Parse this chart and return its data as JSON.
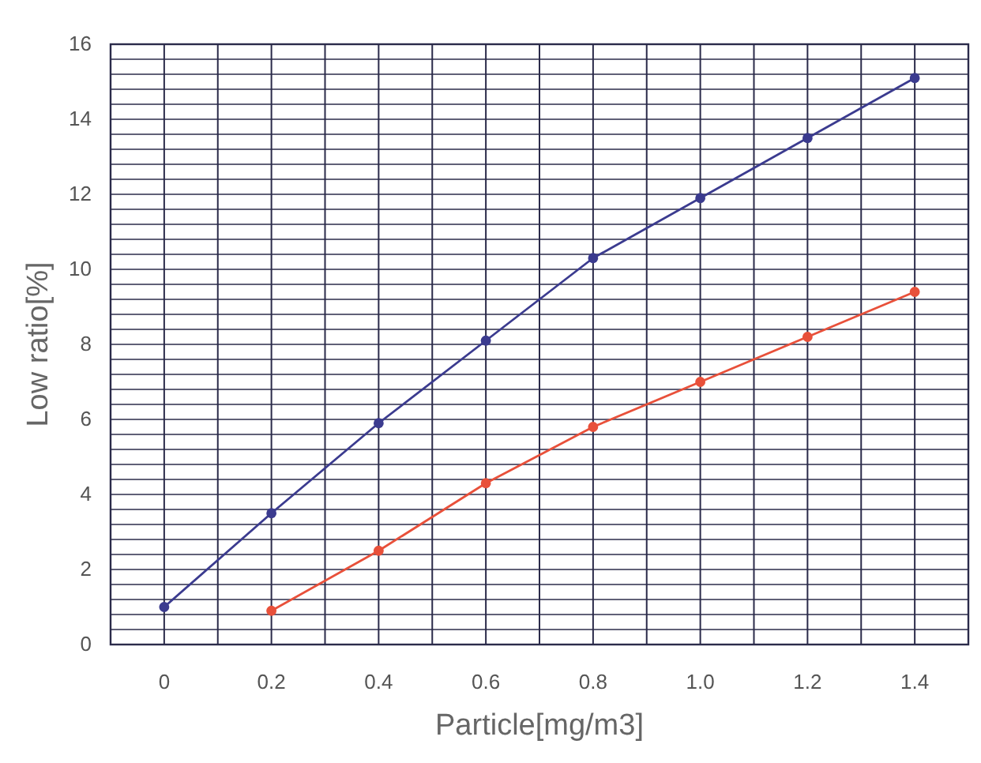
{
  "chart_data": {
    "type": "line",
    "xlabel": "Particle[mg/m3]",
    "ylabel": "Low ratio[%]",
    "x": [
      0,
      0.2,
      0.4,
      0.6,
      0.8,
      1.0,
      1.2,
      1.4
    ],
    "series": [
      {
        "color": "#3b3b8f",
        "values": [
          1.0,
          3.5,
          5.9,
          8.1,
          10.3,
          11.9,
          13.5,
          15.1
        ]
      },
      {
        "color": "#e8503a",
        "values": [
          null,
          0.9,
          2.5,
          4.3,
          5.8,
          7.0,
          8.2,
          9.4
        ]
      }
    ],
    "xlim": [
      -0.1,
      1.5
    ],
    "xticks": [
      {
        "value": -0.1,
        "label": null
      },
      0,
      {
        "value": 0.1,
        "label": null
      },
      0.2,
      {
        "value": 0.3,
        "label": null
      },
      0.4,
      {
        "value": 0.5,
        "label": null
      },
      0.6,
      {
        "value": 0.7,
        "label": null
      },
      0.8,
      {
        "value": 0.9,
        "label": null
      },
      {
        "value": 1,
        "label": "1.0"
      },
      {
        "value": 1.1,
        "label": null
      },
      1.2,
      {
        "value": 1.3,
        "label": null
      },
      1.4,
      {
        "value": 1.5,
        "label": null
      }
    ],
    "ylim": [
      0,
      16
    ],
    "yticks": [
      0,
      {
        "value": 0.4,
        "label": null
      },
      {
        "value": 0.8,
        "label": null
      },
      {
        "value": 1.2,
        "label": null
      },
      {
        "value": 1.6,
        "label": null
      },
      2,
      {
        "value": 2.4,
        "label": null
      },
      {
        "value": 2.8,
        "label": null
      },
      {
        "value": 3.2,
        "label": null
      },
      {
        "value": 3.6,
        "label": null
      },
      4,
      {
        "value": 4.4,
        "label": null
      },
      {
        "value": 4.8,
        "label": null
      },
      {
        "value": 5.2,
        "label": null
      },
      {
        "value": 5.6,
        "label": null
      },
      6,
      {
        "value": 6.4,
        "label": null
      },
      {
        "value": 6.8,
        "label": null
      },
      {
        "value": 7.2,
        "label": null
      },
      {
        "value": 7.6,
        "label": null
      },
      8,
      {
        "value": 8.4,
        "label": null
      },
      {
        "value": 8.8,
        "label": null
      },
      {
        "value": 9.2,
        "label": null
      },
      {
        "value": 9.6,
        "label": null
      },
      10,
      {
        "value": 10.4,
        "label": null
      },
      {
        "value": 10.8,
        "label": null
      },
      {
        "value": 11.2,
        "label": null
      },
      {
        "value": 11.6,
        "label": null
      },
      12,
      {
        "value": 12.4,
        "label": null
      },
      {
        "value": 12.8,
        "label": null
      },
      {
        "value": 13.2,
        "label": null
      },
      {
        "value": 13.6,
        "label": null
      },
      14,
      {
        "value": 14.4,
        "label": null
      },
      {
        "value": 14.8,
        "label": null
      },
      {
        "value": 15.2,
        "label": null
      },
      {
        "value": 15.6,
        "label": null
      },
      16
    ],
    "grid": true,
    "marker": "circle",
    "line_style": "solid"
  }
}
